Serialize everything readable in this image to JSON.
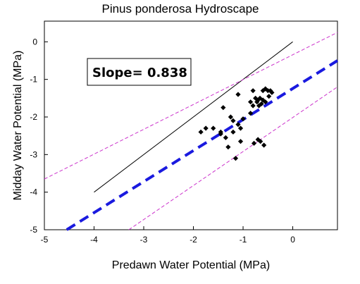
{
  "chart_data": {
    "type": "scatter",
    "title": "Pinus ponderosa Hydroscape",
    "xlabel": "Predawn Water Potential (MPa)",
    "ylabel": "Midday Water Potential (MPa)",
    "xlim": [
      -5,
      0.9
    ],
    "ylim": [
      -5,
      0.55
    ],
    "xticks": [
      -5,
      -4,
      -3,
      -2,
      -1,
      0
    ],
    "yticks": [
      -5,
      -4,
      -3,
      -2,
      -1,
      0
    ],
    "grid": false,
    "annotation": "Slope= 0.838",
    "points": [
      [
        -1.85,
        -2.4
      ],
      [
        -1.75,
        -2.3
      ],
      [
        -1.6,
        -2.3
      ],
      [
        -1.45,
        -2.4
      ],
      [
        -1.45,
        -2.45
      ],
      [
        -1.4,
        -1.75
      ],
      [
        -1.35,
        -2.55
      ],
      [
        -1.3,
        -2.8
      ],
      [
        -1.25,
        -2.0
      ],
      [
        -1.2,
        -2.1
      ],
      [
        -1.2,
        -2.4
      ],
      [
        -1.15,
        -3.1
      ],
      [
        -1.1,
        -1.4
      ],
      [
        -1.1,
        -2.2
      ],
      [
        -1.05,
        -2.65
      ],
      [
        -1.05,
        -2.3
      ],
      [
        -1.0,
        -2.05
      ],
      [
        -0.85,
        -1.6
      ],
      [
        -0.85,
        -1.9
      ],
      [
        -0.8,
        -1.3
      ],
      [
        -0.8,
        -1.7
      ],
      [
        -0.78,
        -2.7
      ],
      [
        -0.75,
        -1.5
      ],
      [
        -0.72,
        -1.6
      ],
      [
        -0.7,
        -1.55
      ],
      [
        -0.7,
        -2.6
      ],
      [
        -0.68,
        -1.7
      ],
      [
        -0.66,
        -1.5
      ],
      [
        -0.65,
        -2.65
      ],
      [
        -0.63,
        -1.65
      ],
      [
        -0.6,
        -1.3
      ],
      [
        -0.6,
        -1.55
      ],
      [
        -0.58,
        -2.75
      ],
      [
        -0.55,
        -1.6
      ],
      [
        -0.55,
        -1.25
      ],
      [
        -0.5,
        -1.3
      ],
      [
        -0.48,
        -1.45
      ],
      [
        -0.45,
        -1.3
      ],
      [
        -0.42,
        -1.35
      ]
    ],
    "lines": {
      "one_to_one": {
        "from": [
          -4,
          -4
        ],
        "to": [
          0,
          0
        ],
        "color": "#000000"
      },
      "regression": {
        "from": [
          -4.55,
          -5.0
        ],
        "to": [
          0.9,
          -0.5
        ],
        "color": "#1a1adf"
      },
      "upper_bound": {
        "from": [
          -5,
          -3.65
        ],
        "to": [
          0.9,
          0.25
        ],
        "color": "#cc33cc"
      },
      "lower_bound": {
        "from": [
          -3.3,
          -5.0
        ],
        "to": [
          0.9,
          -1.2
        ],
        "color": "#cc33cc"
      }
    }
  }
}
